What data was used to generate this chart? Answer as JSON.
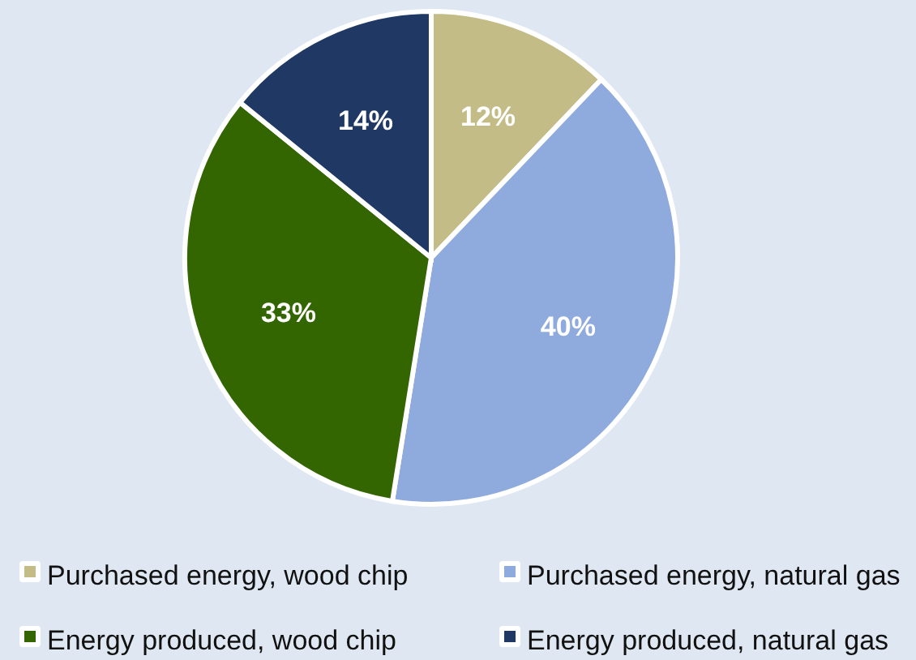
{
  "chart_data": {
    "type": "pie",
    "categories": [
      "Purchased energy, wood chip",
      "Purchased energy, natural gas",
      "Energy produced, wood chip",
      "Energy produced, natural gas"
    ],
    "values": [
      12,
      40,
      33,
      14
    ],
    "colors": [
      "#c4bc86",
      "#8faadc",
      "#336600",
      "#1f3864"
    ],
    "value_labels": [
      "12%",
      "40%",
      "33%",
      "14%"
    ],
    "legend": "bottom"
  }
}
